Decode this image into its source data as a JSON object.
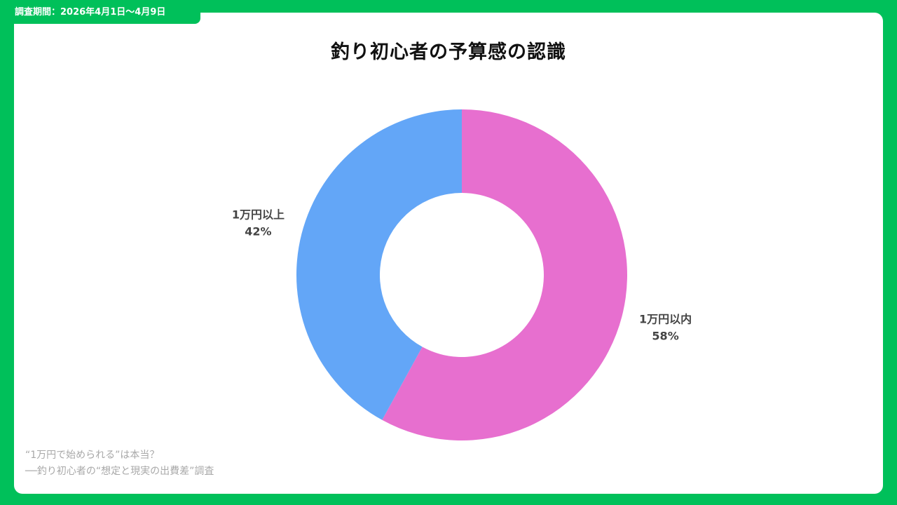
{
  "header": {
    "survey_period": "調査期間：2026年4月1日〜4月9日"
  },
  "chart_data": {
    "type": "pie",
    "title": "釣り初心者の予算感の認識",
    "donut": true,
    "start_angle": "12 o'clock",
    "direction": "clockwise",
    "categories": [
      "1万円以内",
      "1万円以上"
    ],
    "values": [
      58,
      42
    ],
    "value_labels": [
      "58%",
      "42%"
    ],
    "colors": [
      "#e76fcf",
      "#63a6f7"
    ]
  },
  "footer": {
    "line1": "“1万円で始められる”は本当？",
    "line2": "──釣り初心者の“想定と現実の出費差”調査"
  },
  "theme": {
    "frame_color": "#00c05a",
    "background": "#ffffff"
  }
}
